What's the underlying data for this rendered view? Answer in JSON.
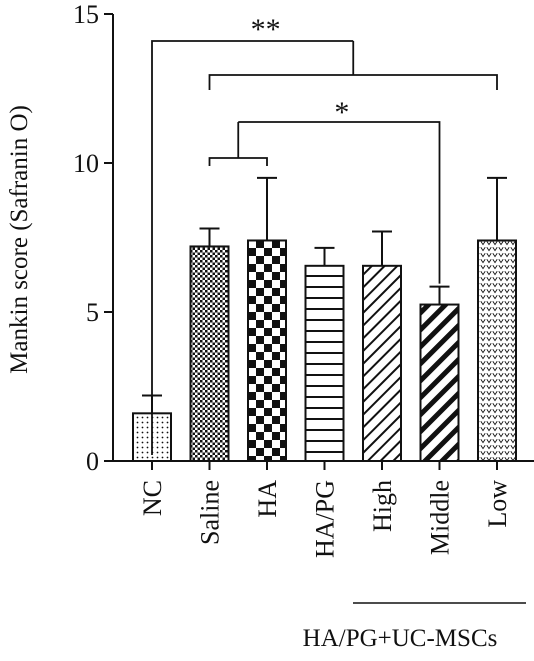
{
  "chart_data": {
    "type": "bar",
    "ylabel": "Mankin score (Safranin O)",
    "ylim": [
      0,
      15
    ],
    "yticks": [
      0,
      5,
      10,
      15
    ],
    "grid": false,
    "categories": [
      "NC",
      "Saline",
      "HA",
      "HA/PG",
      "High",
      "Middle",
      "Low"
    ],
    "patterns": [
      "dots",
      "fine-grid",
      "checker",
      "horizontal-lines",
      "diagonal-lines",
      "bold-diagonal",
      "v-marks"
    ],
    "values": [
      1.6,
      7.2,
      7.4,
      6.55,
      6.55,
      5.25,
      7.4
    ],
    "errors": [
      0.6,
      0.6,
      2.1,
      0.6,
      1.15,
      0.6,
      2.1
    ],
    "group_label": "HA/PG+UC-MSCs",
    "group_members": [
      "High",
      "Middle",
      "Low"
    ],
    "significance": [
      {
        "label": "**",
        "from": "NC",
        "to": [
          "Saline",
          "HA",
          "HA/PG",
          "High",
          "Middle",
          "Low"
        ]
      },
      {
        "label": "*",
        "from": "Middle",
        "to": [
          "Saline",
          "HA"
        ]
      }
    ],
    "colors": {
      "ink": "#111111",
      "background": "#ffffff"
    }
  }
}
